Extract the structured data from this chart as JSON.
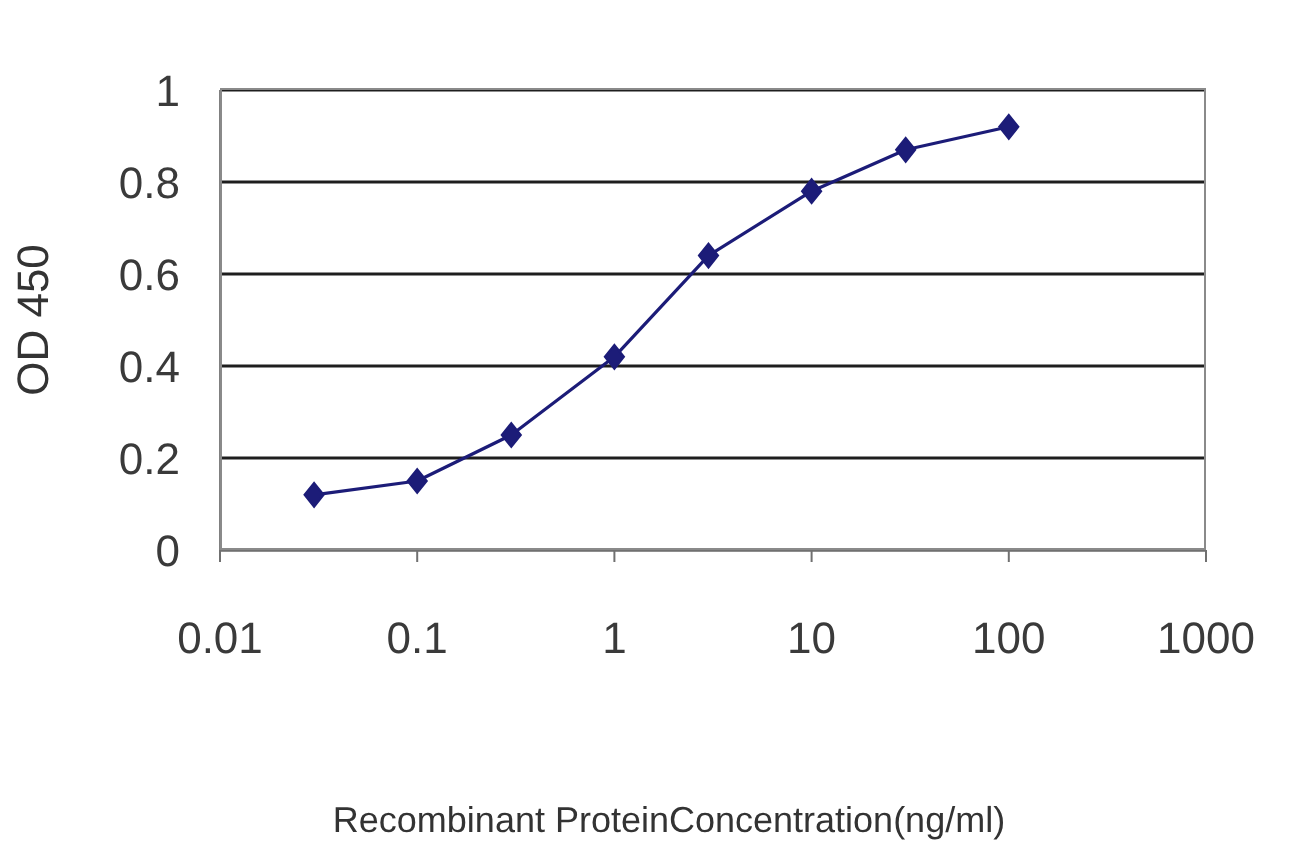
{
  "chart_data": {
    "type": "line",
    "xlabel": "Recombinant ProteinConcentration(ng/ml)",
    "ylabel": "OD 450",
    "x": [
      0.03,
      0.1,
      0.3,
      1,
      3,
      10,
      30,
      100
    ],
    "series": [
      {
        "color": "#1c1c78",
        "values": [
          0.12,
          0.15,
          0.25,
          0.42,
          0.64,
          0.78,
          0.87,
          0.92
        ]
      }
    ],
    "log": "x",
    "xlim": [
      0.01,
      1000
    ],
    "xticks": [
      0.01,
      0.1,
      1,
      10,
      100,
      1000
    ],
    "ylim": [
      0,
      1
    ],
    "yticks": [
      0,
      0.2,
      0.4,
      0.6,
      0.8,
      1
    ],
    "grid": "y",
    "marker": "diamond",
    "line_style": "solid"
  }
}
